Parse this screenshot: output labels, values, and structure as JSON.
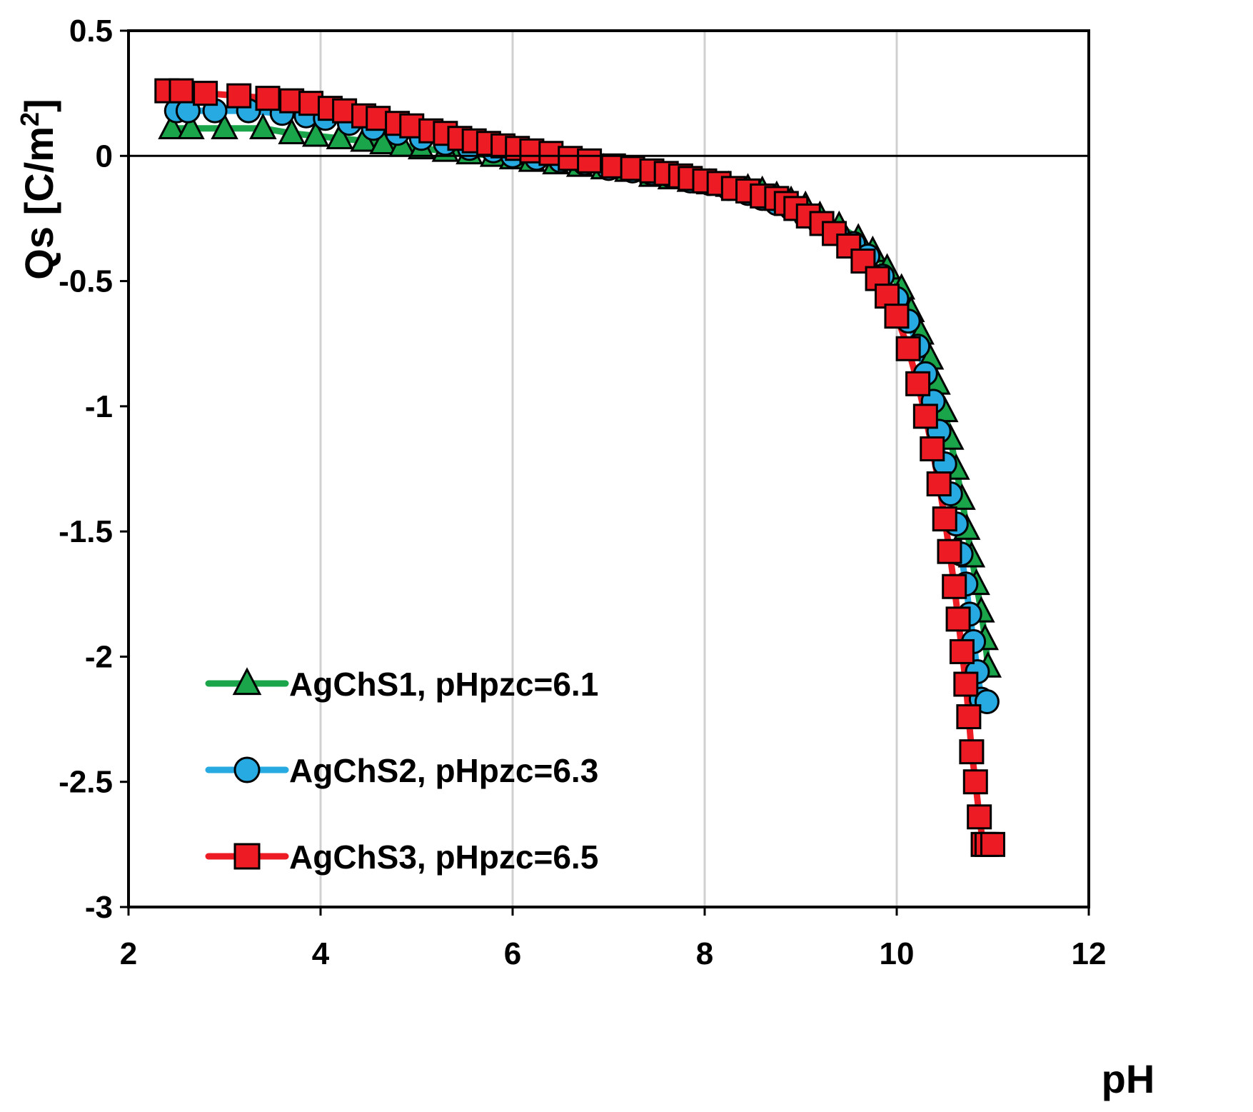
{
  "chart_data": {
    "type": "line",
    "title": "",
    "xlabel": "pH",
    "ylabel": "Qs [C/m2]",
    "ylabel_main": "Qs [C/m",
    "ylabel_sup": "2",
    "ylabel_close": "]",
    "xlim": [
      2,
      12
    ],
    "ylim": [
      -3,
      0.5
    ],
    "xticks": [
      "2",
      "4",
      "6",
      "8",
      "10",
      "12"
    ],
    "yticks": [
      "0.5",
      "0",
      "-0.5",
      "-1",
      "-1.5",
      "-2",
      "-2.5",
      "-3"
    ],
    "grid": "vertical",
    "legend_position": "bottom-left",
    "series": [
      {
        "name": "AgChS1, pHpzc=6.1",
        "color": "#1aa54b",
        "marker": "triangle",
        "x": [
          2.45,
          2.65,
          3.0,
          3.4,
          3.7,
          3.95,
          4.2,
          4.45,
          4.65,
          4.85,
          5.05,
          5.3,
          5.55,
          5.8,
          6.0,
          6.2,
          6.45,
          6.7,
          6.95,
          7.2,
          7.45,
          7.65,
          7.85,
          8.05,
          8.25,
          8.45,
          8.6,
          8.75,
          8.9,
          9.05,
          9.2,
          9.4,
          9.6,
          9.75,
          9.9,
          10.05,
          10.15,
          10.25,
          10.35,
          10.42,
          10.5,
          10.56,
          10.62,
          10.68,
          10.73,
          10.78,
          10.83,
          10.88,
          10.92,
          10.95
        ],
        "y": [
          0.11,
          0.11,
          0.11,
          0.11,
          0.09,
          0.08,
          0.07,
          0.06,
          0.05,
          0.04,
          0.03,
          0.02,
          0.01,
          0.0,
          -0.01,
          -0.02,
          -0.03,
          -0.04,
          -0.05,
          -0.06,
          -0.08,
          -0.09,
          -0.1,
          -0.11,
          -0.12,
          -0.13,
          -0.14,
          -0.16,
          -0.18,
          -0.2,
          -0.24,
          -0.28,
          -0.33,
          -0.38,
          -0.45,
          -0.53,
          -0.62,
          -0.71,
          -0.81,
          -0.91,
          -1.02,
          -1.13,
          -1.25,
          -1.37,
          -1.49,
          -1.6,
          -1.71,
          -1.82,
          -1.93,
          -2.04
        ]
      },
      {
        "name": "AgChS2, pHpzc=6.3",
        "color": "#27aae1",
        "marker": "circle",
        "x": [
          2.5,
          2.62,
          2.9,
          3.25,
          3.6,
          3.85,
          4.05,
          4.3,
          4.55,
          4.8,
          5.05,
          5.3,
          5.55,
          5.8,
          6.0,
          6.25,
          6.5,
          6.75,
          7.0,
          7.25,
          7.45,
          7.65,
          7.85,
          8.05,
          8.25,
          8.45,
          8.6,
          8.75,
          8.9,
          9.05,
          9.2,
          9.38,
          9.55,
          9.7,
          9.85,
          10.0,
          10.12,
          10.22,
          10.3,
          10.38,
          10.44,
          10.5,
          10.56,
          10.62,
          10.67,
          10.72,
          10.76,
          10.8,
          10.84,
          10.88,
          10.94
        ],
        "y": [
          0.18,
          0.18,
          0.18,
          0.18,
          0.17,
          0.16,
          0.15,
          0.13,
          0.11,
          0.09,
          0.07,
          0.05,
          0.03,
          0.02,
          0.0,
          -0.01,
          -0.02,
          -0.03,
          -0.05,
          -0.06,
          -0.07,
          -0.08,
          -0.1,
          -0.11,
          -0.13,
          -0.15,
          -0.17,
          -0.19,
          -0.21,
          -0.24,
          -0.27,
          -0.31,
          -0.35,
          -0.4,
          -0.48,
          -0.57,
          -0.66,
          -0.76,
          -0.87,
          -0.98,
          -1.1,
          -1.23,
          -1.35,
          -1.47,
          -1.59,
          -1.71,
          -1.83,
          -1.94,
          -2.06,
          -2.17,
          -2.18
        ]
      },
      {
        "name": "AgChS3, pHpzc=6.5",
        "color": "#ed1c24",
        "marker": "square",
        "x": [
          2.4,
          2.55,
          2.8,
          3.15,
          3.45,
          3.7,
          3.9,
          4.1,
          4.25,
          4.45,
          4.6,
          4.8,
          4.95,
          5.15,
          5.3,
          5.45,
          5.6,
          5.75,
          5.9,
          6.05,
          6.2,
          6.4,
          6.6,
          6.8,
          7.05,
          7.25,
          7.45,
          7.6,
          7.75,
          7.85,
          8.0,
          8.15,
          8.3,
          8.45,
          8.6,
          8.75,
          8.85,
          8.95,
          9.08,
          9.22,
          9.35,
          9.5,
          9.65,
          9.8,
          9.9,
          10.0,
          10.12,
          10.22,
          10.3,
          10.37,
          10.44,
          10.5,
          10.55,
          10.6,
          10.64,
          10.68,
          10.72,
          10.75,
          10.78,
          10.82,
          10.86,
          10.9,
          10.94,
          11.0
        ],
        "y": [
          0.26,
          0.26,
          0.25,
          0.24,
          0.23,
          0.22,
          0.21,
          0.19,
          0.18,
          0.16,
          0.15,
          0.13,
          0.12,
          0.1,
          0.09,
          0.07,
          0.06,
          0.05,
          0.04,
          0.03,
          0.02,
          0.01,
          -0.01,
          -0.02,
          -0.04,
          -0.05,
          -0.06,
          -0.07,
          -0.08,
          -0.09,
          -0.1,
          -0.11,
          -0.13,
          -0.14,
          -0.16,
          -0.17,
          -0.19,
          -0.21,
          -0.24,
          -0.27,
          -0.31,
          -0.36,
          -0.42,
          -0.49,
          -0.56,
          -0.64,
          -0.77,
          -0.91,
          -1.04,
          -1.17,
          -1.31,
          -1.45,
          -1.58,
          -1.72,
          -1.85,
          -1.98,
          -2.11,
          -2.24,
          -2.38,
          -2.5,
          -2.64,
          -2.75,
          -2.75,
          -2.75
        ]
      }
    ]
  }
}
